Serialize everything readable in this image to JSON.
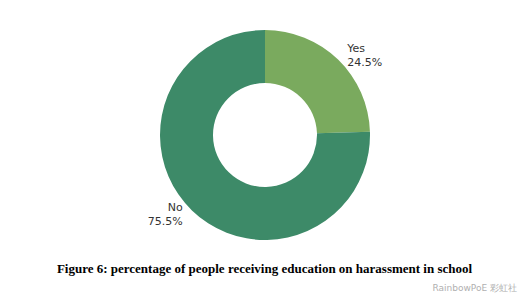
{
  "chart_data": {
    "type": "pie",
    "title": "Figure 6: percentage of people receiving education on harassment in school",
    "categories": [
      "Yes",
      "No"
    ],
    "values": [
      24.5,
      75.5
    ],
    "value_labels": [
      "24.5%",
      "75.5%"
    ],
    "colors": [
      "#7aaa5e",
      "#3d8a68"
    ],
    "data_labels": true,
    "annotations": [
      "RainbowPoE 彩虹社"
    ]
  }
}
